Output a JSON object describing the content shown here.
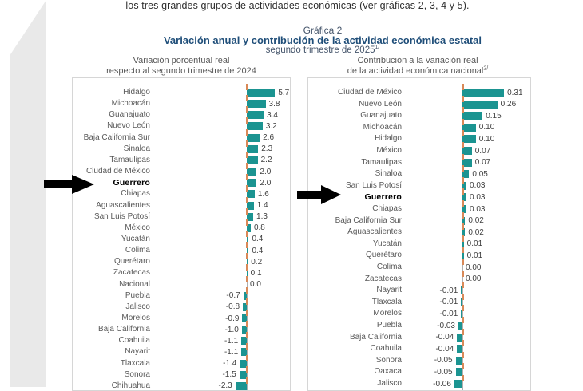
{
  "page": {
    "intro_text": "los tres grandes grupos de actividades económicas (ver gráficas 2, 3, 4 y 5).",
    "figure_label": "Gráfica 2",
    "title": "Variación anual y contribución de la actividad económica estatal",
    "subtitle": "segundo trimestre de 2025",
    "subtitle_sup": "1/"
  },
  "colors": {
    "bar_teal": "#1b9491",
    "axis_tick_orange": "#d98958",
    "title_blue": "#1f4e79",
    "header_grayblue": "#44546a",
    "label_gray": "#595959",
    "highlight_black": "#000000",
    "box_border": "#d6d6d6",
    "scan_band_gray": "#e9e9e9"
  },
  "chart_data": [
    {
      "type": "bar",
      "orientation": "horizontal-bars",
      "title_line1": "Variación porcentual real",
      "title_line2": "respecto al segundo trimestre de 2024",
      "title_sup": "",
      "value_format": "one-decimal-percent",
      "highlight": "Guerrero",
      "axis": {
        "zero_line": true,
        "tick_style": "orange-dashes",
        "xlim": [
          -2.5,
          6.5
        ]
      },
      "legend": "none",
      "rows": [
        {
          "state": "Hidalgo",
          "value": 5.7,
          "display": "5.7"
        },
        {
          "state": "Michoacán",
          "value": 3.8,
          "display": "3.8"
        },
        {
          "state": "Guanajuato",
          "value": 3.4,
          "display": "3.4"
        },
        {
          "state": "Nuevo León",
          "value": 3.2,
          "display": "3.2"
        },
        {
          "state": "Baja California Sur",
          "value": 2.6,
          "display": "2.6"
        },
        {
          "state": "Sinaloa",
          "value": 2.3,
          "display": "2.3"
        },
        {
          "state": "Tamaulipas",
          "value": 2.2,
          "display": "2.2"
        },
        {
          "state": "Ciudad de México",
          "value": 2.0,
          "display": "2.0"
        },
        {
          "state": "Guerrero",
          "value": 2.0,
          "display": "2.0"
        },
        {
          "state": "Chiapas",
          "value": 1.6,
          "display": "1.6"
        },
        {
          "state": "Aguascalientes",
          "value": 1.4,
          "display": "1.4"
        },
        {
          "state": "San Luis Potosí",
          "value": 1.3,
          "display": "1.3"
        },
        {
          "state": "México",
          "value": 0.8,
          "display": "0.8"
        },
        {
          "state": "Yucatán",
          "value": 0.4,
          "display": "0.4"
        },
        {
          "state": "Colima",
          "value": 0.4,
          "display": "0.4"
        },
        {
          "state": "Querétaro",
          "value": 0.2,
          "display": "0.2"
        },
        {
          "state": "Zacatecas",
          "value": 0.1,
          "display": "0.1"
        },
        {
          "state": "Nacional",
          "value": 0.0,
          "display": "0.0"
        },
        {
          "state": "Puebla",
          "value": -0.7,
          "display": "-0.7"
        },
        {
          "state": "Jalisco",
          "value": -0.8,
          "display": "-0.8"
        },
        {
          "state": "Morelos",
          "value": -0.9,
          "display": "-0.9"
        },
        {
          "state": "Baja California",
          "value": -1.0,
          "display": "-1.0"
        },
        {
          "state": "Coahuila",
          "value": -1.1,
          "display": "-1.1"
        },
        {
          "state": "Nayarit",
          "value": -1.1,
          "display": "-1.1"
        },
        {
          "state": "Tlaxcala",
          "value": -1.4,
          "display": "-1.4"
        },
        {
          "state": "Sonora",
          "value": -1.5,
          "display": "-1.5"
        },
        {
          "state": "Chihuahua",
          "value": -2.3,
          "display": "-2.3"
        }
      ]
    },
    {
      "type": "bar",
      "orientation": "horizontal-bars",
      "title_line1": "Contribución a la variación real",
      "title_line2": "de la actividad económica nacional",
      "title_sup": "2/",
      "value_format": "two-decimal-points",
      "highlight": "Guerrero",
      "axis": {
        "zero_line": true,
        "tick_style": "orange-dashes",
        "xlim": [
          -0.08,
          0.35
        ]
      },
      "legend": "none",
      "rows": [
        {
          "state": "Ciudad de México",
          "value": 0.31,
          "display": "0.31"
        },
        {
          "state": "Nuevo León",
          "value": 0.26,
          "display": "0.26"
        },
        {
          "state": "Guanajuato",
          "value": 0.15,
          "display": "0.15"
        },
        {
          "state": "Michoacán",
          "value": 0.1,
          "display": "0.10"
        },
        {
          "state": "Hidalgo",
          "value": 0.1,
          "display": "0.10"
        },
        {
          "state": "México",
          "value": 0.07,
          "display": "0.07"
        },
        {
          "state": "Tamaulipas",
          "value": 0.07,
          "display": "0.07"
        },
        {
          "state": "Sinaloa",
          "value": 0.05,
          "display": "0.05"
        },
        {
          "state": "San Luis Potosí",
          "value": 0.03,
          "display": "0.03"
        },
        {
          "state": "Guerrero",
          "value": 0.03,
          "display": "0.03"
        },
        {
          "state": "Chiapas",
          "value": 0.03,
          "display": "0.03"
        },
        {
          "state": "Baja California Sur",
          "value": 0.02,
          "display": "0.02"
        },
        {
          "state": "Aguascalientes",
          "value": 0.02,
          "display": "0.02"
        },
        {
          "state": "Yucatán",
          "value": 0.01,
          "display": "0.01"
        },
        {
          "state": "Querétaro",
          "value": 0.01,
          "display": "0.01"
        },
        {
          "state": "Colima",
          "value": 0.0,
          "display": "0.00"
        },
        {
          "state": "Zacatecas",
          "value": 0.0,
          "display": "0.00"
        },
        {
          "state": "Nayarit",
          "value": -0.01,
          "display": "-0.01"
        },
        {
          "state": "Tlaxcala",
          "value": -0.01,
          "display": "-0.01"
        },
        {
          "state": "Morelos",
          "value": -0.01,
          "display": "-0.01"
        },
        {
          "state": "Puebla",
          "value": -0.03,
          "display": "-0.03"
        },
        {
          "state": "Baja California",
          "value": -0.04,
          "display": "-0.04"
        },
        {
          "state": "Coahuila",
          "value": -0.04,
          "display": "-0.04"
        },
        {
          "state": "Sonora",
          "value": -0.05,
          "display": "-0.05"
        },
        {
          "state": "Oaxaca",
          "value": -0.05,
          "display": "-0.05"
        },
        {
          "state": "Jalisco",
          "value": -0.06,
          "display": "-0.06"
        }
      ]
    }
  ]
}
